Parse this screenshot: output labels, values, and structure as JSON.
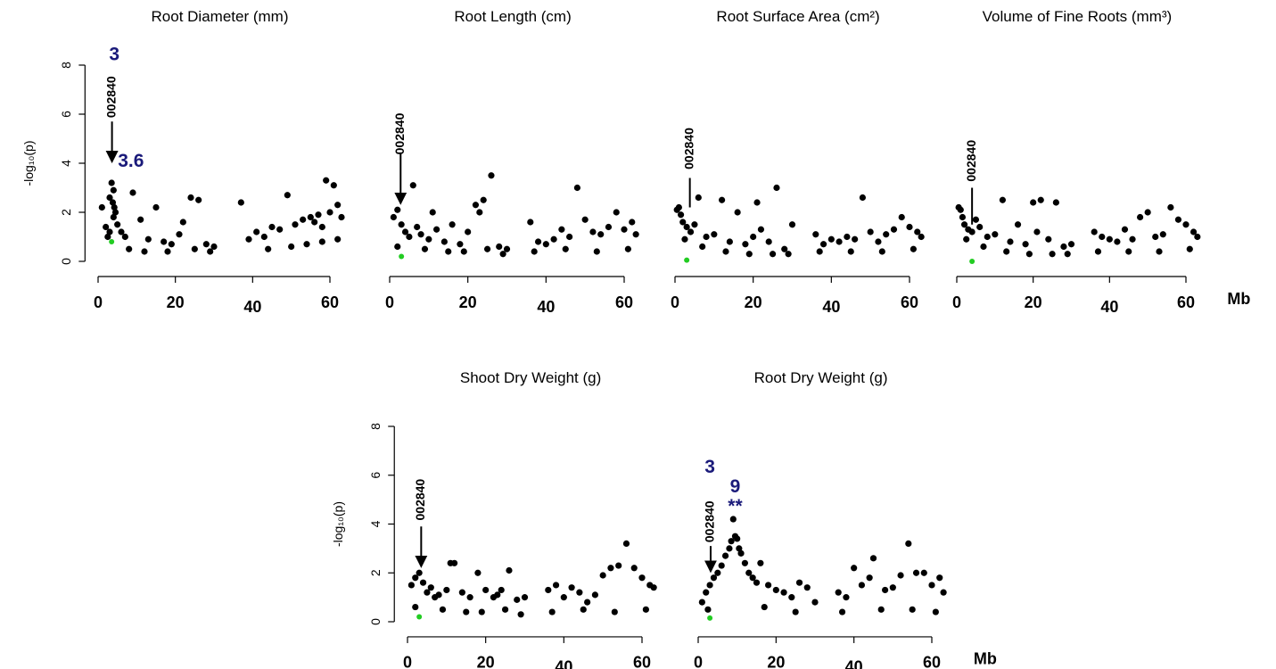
{
  "chart_data": [
    {
      "type": "scatter",
      "title": "Root Diameter (mm)",
      "ylabel": "-log₁₀(p)",
      "show_yaxis": true,
      "xlim": [
        -2,
        65
      ],
      "ylim": [
        -0.4,
        8.2
      ],
      "xticks": [
        0,
        20,
        40,
        60
      ],
      "yticks": [
        0,
        2,
        4,
        6,
        8
      ],
      "series": [
        {
          "color": "#000000",
          "x": [
            1,
            2,
            3,
            3.5,
            4,
            4,
            3,
            2.5,
            4.5,
            5,
            6,
            7,
            9,
            11,
            13,
            15,
            17,
            19,
            21,
            22,
            24,
            26,
            28,
            30,
            37,
            39,
            41,
            43,
            45,
            47,
            49,
            51,
            53,
            55,
            56,
            57,
            58,
            59,
            60,
            61,
            62,
            63,
            3.8,
            4.2,
            8,
            12,
            18,
            25,
            29,
            44,
            50,
            54,
            58,
            62
          ],
          "values": [
            2.2,
            1.4,
            2.6,
            3.2,
            2.9,
            1.8,
            1.2,
            1,
            2.0,
            1.5,
            1.2,
            1,
            2.8,
            1.7,
            0.9,
            2.2,
            0.8,
            0.7,
            1.1,
            1.6,
            2.6,
            2.5,
            0.7,
            0.6,
            2.4,
            0.9,
            1.2,
            1.0,
            1.4,
            1.3,
            2.7,
            1.5,
            1.7,
            1.8,
            1.6,
            1.9,
            1.4,
            3.3,
            2.0,
            3.1,
            2.3,
            1.8,
            2.4,
            2.2,
            0.5,
            0.4,
            0.4,
            0.5,
            0.4,
            0.5,
            0.6,
            0.7,
            0.8,
            0.9
          ]
        },
        {
          "color": "#22cc22",
          "x": [
            3.5
          ],
          "values": [
            0.8
          ]
        }
      ],
      "annotations": [
        "002840",
        "3",
        "3.6"
      ]
    },
    {
      "type": "scatter",
      "title": "Root Length (cm)",
      "show_yaxis": false,
      "xlim": [
        -2,
        65
      ],
      "ylim": [
        -0.4,
        8.2
      ],
      "xticks": [
        0,
        20,
        40,
        60
      ],
      "yticks": [
        0,
        2,
        4,
        6,
        8
      ],
      "series": [
        {
          "color": "#000000",
          "x": [
            1,
            2,
            3,
            4,
            5,
            6,
            7,
            8,
            10,
            11,
            12,
            14,
            16,
            18,
            20,
            22,
            23,
            24,
            26,
            28,
            30,
            36,
            38,
            40,
            42,
            44,
            46,
            48,
            50,
            52,
            54,
            56,
            58,
            60,
            62,
            63,
            2,
            9,
            15,
            19,
            25,
            29,
            37,
            45,
            53,
            61
          ],
          "values": [
            1.8,
            2.1,
            1.5,
            1.2,
            1.0,
            3.1,
            1.4,
            1.1,
            0.9,
            2.0,
            1.3,
            0.8,
            1.5,
            0.7,
            1.2,
            2.3,
            2.0,
            2.5,
            3.5,
            0.6,
            0.5,
            1.6,
            0.8,
            0.7,
            0.9,
            1.3,
            1.0,
            3.0,
            1.7,
            1.2,
            1.1,
            1.4,
            2.0,
            1.3,
            1.6,
            1.1,
            0.6,
            0.5,
            0.4,
            0.4,
            0.5,
            0.3,
            0.4,
            0.5,
            0.4,
            0.5
          ]
        },
        {
          "color": "#22cc22",
          "x": [
            3
          ],
          "values": [
            0.2
          ]
        }
      ],
      "annotations": [
        "002840"
      ]
    },
    {
      "type": "scatter",
      "title": "Root Surface Area (cm²)",
      "show_yaxis": false,
      "xlim": [
        -2,
        65
      ],
      "ylim": [
        -0.4,
        8.2
      ],
      "xticks": [
        0,
        20,
        40,
        60
      ],
      "yticks": [
        0,
        2,
        4,
        6,
        8
      ],
      "series": [
        {
          "color": "#000000",
          "x": [
            0.5,
            1,
            1.5,
            2,
            3,
            4,
            5,
            6,
            8,
            10,
            12,
            14,
            16,
            18,
            20,
            21,
            22,
            24,
            26,
            28,
            30,
            36,
            38,
            40,
            42,
            44,
            46,
            48,
            50,
            52,
            54,
            56,
            58,
            60,
            62,
            63,
            2.5,
            7,
            13,
            19,
            25,
            29,
            37,
            45,
            53,
            61
          ],
          "values": [
            2.1,
            2.2,
            1.9,
            1.6,
            1.4,
            1.2,
            1.5,
            2.6,
            1.0,
            1.1,
            2.5,
            0.8,
            2.0,
            0.7,
            1.0,
            2.4,
            1.3,
            0.8,
            3.0,
            0.5,
            1.5,
            1.1,
            0.7,
            0.9,
            0.8,
            1.0,
            0.9,
            2.6,
            1.2,
            0.8,
            1.1,
            1.3,
            1.8,
            1.4,
            1.2,
            1.0,
            0.9,
            0.6,
            0.4,
            0.3,
            0.3,
            0.3,
            0.4,
            0.4,
            0.4,
            0.5
          ]
        },
        {
          "color": "#22cc22",
          "x": [
            3
          ],
          "values": [
            0.05
          ]
        }
      ],
      "annotations": [
        "002840"
      ]
    },
    {
      "type": "scatter",
      "title": "Volume of Fine Roots (mm³)",
      "xlabel": "Mb",
      "show_yaxis": false,
      "xlim": [
        -2,
        65
      ],
      "ylim": [
        -0.4,
        8.2
      ],
      "xticks": [
        0,
        20,
        40,
        60
      ],
      "yticks": [
        0,
        2,
        4,
        6,
        8
      ],
      "series": [
        {
          "color": "#000000",
          "x": [
            0.5,
            1,
            1.5,
            2,
            3,
            4,
            5,
            6,
            8,
            10,
            12,
            14,
            16,
            18,
            20,
            21,
            22,
            24,
            26,
            28,
            30,
            36,
            38,
            40,
            42,
            44,
            46,
            48,
            50,
            52,
            54,
            56,
            58,
            60,
            62,
            63,
            2.5,
            7,
            13,
            19,
            25,
            29,
            37,
            45,
            53,
            61
          ],
          "values": [
            2.2,
            2.1,
            1.8,
            1.5,
            1.3,
            1.2,
            1.7,
            1.4,
            1.0,
            1.1,
            2.5,
            0.8,
            1.5,
            0.7,
            2.4,
            1.2,
            2.5,
            0.9,
            2.4,
            0.6,
            0.7,
            1.2,
            1.0,
            0.9,
            0.8,
            1.3,
            0.9,
            1.8,
            2.0,
            1.0,
            1.1,
            2.2,
            1.7,
            1.5,
            1.2,
            1.0,
            0.9,
            0.6,
            0.4,
            0.3,
            0.3,
            0.3,
            0.4,
            0.4,
            0.4,
            0.5
          ]
        },
        {
          "color": "#22cc22",
          "x": [
            4
          ],
          "values": [
            0
          ]
        }
      ],
      "annotations": [
        "002840"
      ]
    },
    {
      "type": "scatter",
      "title": "Shoot Dry Weight (g)",
      "ylabel": "-log₁₀(p)",
      "show_yaxis": true,
      "xlim": [
        -2,
        65
      ],
      "ylim": [
        -0.4,
        8.2
      ],
      "xticks": [
        0,
        20,
        40,
        60
      ],
      "yticks": [
        0,
        2,
        4,
        6,
        8
      ],
      "series": [
        {
          "color": "#000000",
          "x": [
            1,
            2,
            3,
            4,
            5,
            6,
            7,
            8,
            10,
            11,
            12,
            14,
            16,
            18,
            20,
            22,
            23,
            24,
            26,
            28,
            30,
            36,
            38,
            40,
            42,
            44,
            46,
            48,
            50,
            52,
            54,
            56,
            58,
            60,
            62,
            63,
            2,
            9,
            15,
            19,
            25,
            29,
            37,
            45,
            53,
            61
          ],
          "values": [
            1.5,
            1.8,
            2.0,
            1.6,
            1.2,
            1.4,
            1.0,
            1.1,
            1.3,
            2.4,
            2.4,
            1.2,
            1.0,
            2.0,
            1.3,
            1.0,
            1.1,
            1.3,
            2.1,
            0.9,
            1.0,
            1.3,
            1.5,
            1.0,
            1.4,
            1.2,
            0.8,
            1.1,
            1.9,
            2.2,
            2.3,
            3.2,
            2.2,
            1.8,
            1.5,
            1.4,
            0.6,
            0.5,
            0.4,
            0.4,
            0.5,
            0.3,
            0.4,
            0.5,
            0.4,
            0.5
          ]
        },
        {
          "color": "#22cc22",
          "x": [
            3
          ],
          "values": [
            0.2
          ]
        }
      ],
      "annotations": [
        "002840"
      ]
    },
    {
      "type": "scatter",
      "title": "Root Dry Weight (g)",
      "xlabel": "Mb",
      "show_yaxis": false,
      "xlim": [
        -2,
        65
      ],
      "ylim": [
        -0.4,
        8.2
      ],
      "xticks": [
        0,
        20,
        40,
        60
      ],
      "yticks": [
        0,
        2,
        4,
        6,
        8
      ],
      "series": [
        {
          "color": "#000000",
          "x": [
            1,
            2,
            3,
            4,
            5,
            6,
            7,
            8,
            8.5,
            9,
            9.5,
            10,
            10.5,
            11,
            12,
            13,
            14,
            15,
            16,
            18,
            20,
            22,
            24,
            26,
            28,
            30,
            36,
            38,
            40,
            42,
            44,
            45,
            48,
            50,
            52,
            54,
            56,
            58,
            60,
            62,
            63,
            2.5,
            17,
            25,
            37,
            47,
            55,
            61
          ],
          "values": [
            0.8,
            1.2,
            1.5,
            1.8,
            2.0,
            2.3,
            2.7,
            3.0,
            3.3,
            4.2,
            3.5,
            3.4,
            3.0,
            2.8,
            2.4,
            2.0,
            1.8,
            1.6,
            2.4,
            1.5,
            1.3,
            1.2,
            1.0,
            1.6,
            1.4,
            0.8,
            1.2,
            1.0,
            2.2,
            1.5,
            1.8,
            2.6,
            1.3,
            1.4,
            1.9,
            3.2,
            2.0,
            2.0,
            1.5,
            1.8,
            1.2,
            0.5,
            0.6,
            0.4,
            0.4,
            0.5,
            0.5,
            0.4
          ]
        },
        {
          "color": "#22cc22",
          "x": [
            3
          ],
          "values": [
            0.15
          ]
        }
      ],
      "annotations": [
        "002840",
        "3",
        "9",
        "**"
      ]
    }
  ]
}
